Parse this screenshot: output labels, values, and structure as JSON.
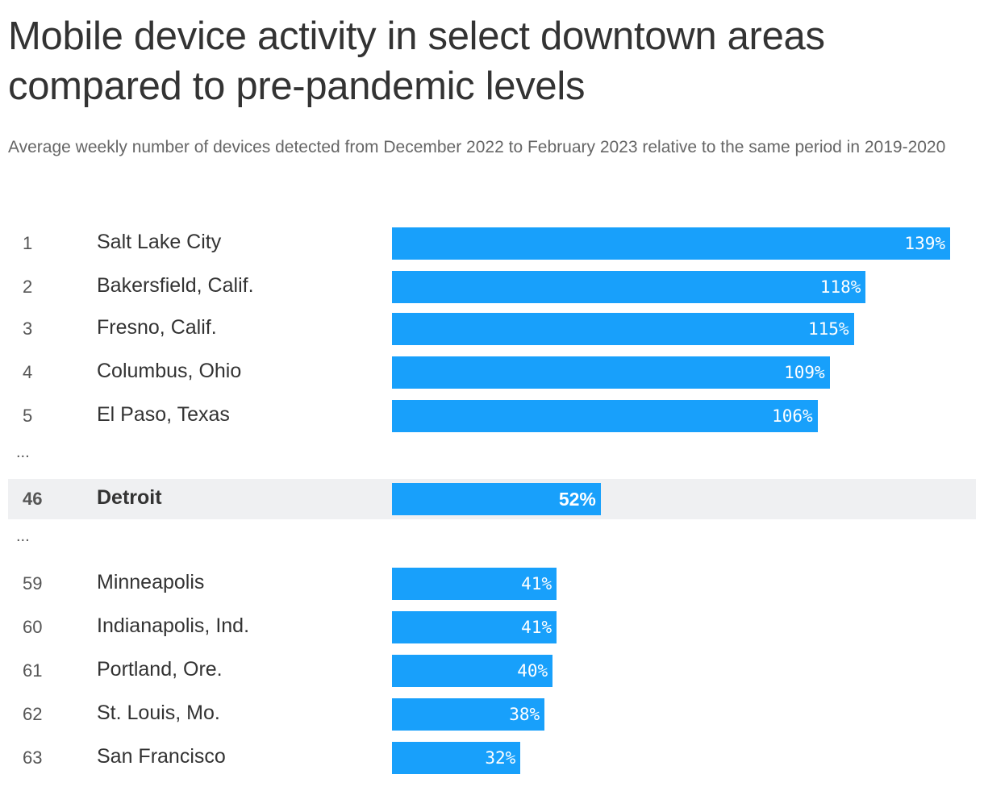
{
  "title": "Mobile device activity in select downtown areas compared to pre-pandemic levels",
  "subtitle": "Average weekly number of devices detected from December 2022 to February 2023 relative to the same period in 2019-2020",
  "colors": {
    "bar": "#18a0fb",
    "highlight_bg": "#eff0f2"
  },
  "chart_data": {
    "type": "bar",
    "orientation": "horizontal",
    "unit": "%",
    "xlim": [
      0,
      139
    ],
    "rows": [
      {
        "rank": "1",
        "name": "Salt Lake City",
        "value": 139,
        "label": "139%"
      },
      {
        "rank": "2",
        "name": "Bakersfield, Calif.",
        "value": 118,
        "label": "118%"
      },
      {
        "rank": "3",
        "name": "Fresno, Calif.",
        "value": 115,
        "label": "115%"
      },
      {
        "rank": "4",
        "name": "Columbus, Ohio",
        "value": 109,
        "label": "109%"
      },
      {
        "rank": "5",
        "name": "El Paso, Texas",
        "value": 106,
        "label": "106%"
      },
      {
        "ellipsis": "..."
      },
      {
        "rank": "46",
        "name": "Detroit",
        "value": 52,
        "label": "52%",
        "highlight": true
      },
      {
        "ellipsis": "..."
      },
      {
        "rank": "59",
        "name": "Minneapolis",
        "value": 41,
        "label": "41%"
      },
      {
        "rank": "60",
        "name": "Indianapolis, Ind.",
        "value": 41,
        "label": "41%"
      },
      {
        "rank": "61",
        "name": "Portland, Ore.",
        "value": 40,
        "label": "40%"
      },
      {
        "rank": "62",
        "name": "St. Louis, Mo.",
        "value": 38,
        "label": "38%"
      },
      {
        "rank": "63",
        "name": "San Francisco",
        "value": 32,
        "label": "32%"
      }
    ]
  }
}
